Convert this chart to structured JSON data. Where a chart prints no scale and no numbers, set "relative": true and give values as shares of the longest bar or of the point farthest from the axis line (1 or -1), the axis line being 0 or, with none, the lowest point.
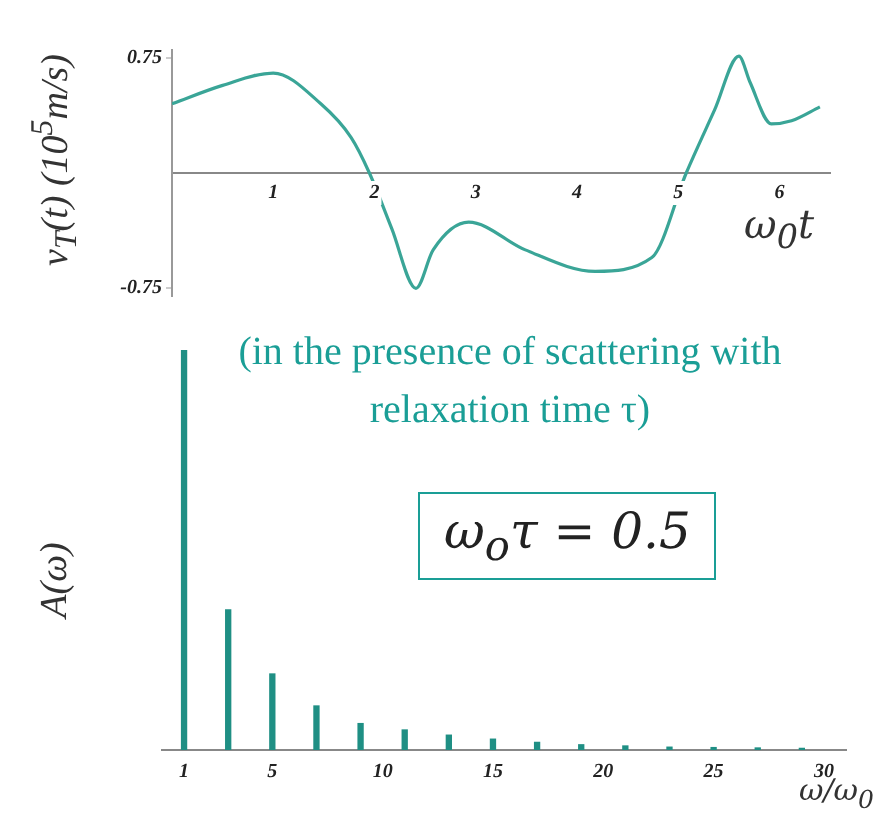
{
  "chart_data": [
    {
      "type": "line",
      "xlabel": "ω$_{0}$t",
      "ylabel": "v$_{T}$(t)  (10$^{5}$m/s)",
      "color": "#3aa597",
      "x": [
        0,
        0.5,
        1,
        1.47,
        1.77,
        1.95,
        2.17,
        2.41,
        2.58,
        2.93,
        3.49,
        4.18,
        4.74,
        5.08,
        5.36,
        5.6,
        5.71,
        5.92,
        6.12,
        6.4
      ],
      "values": [
        0.45,
        0.57,
        0.65,
        0.45,
        0.23,
        0,
        -0.36,
        -0.75,
        -0.5,
        -0.32,
        -0.5,
        -0.64,
        -0.55,
        0,
        0.41,
        0.76,
        0.59,
        0.32,
        0.34,
        0.43
      ],
      "xlim": [
        0,
        6.5
      ],
      "xticks": [
        1,
        2,
        3,
        4,
        5,
        6
      ],
      "ylim": [
        -0.8,
        0.8
      ],
      "yticks": [
        0.75,
        -0.75
      ],
      "grid": false,
      "legend": false,
      "marker": "none",
      "line_style": "solid"
    },
    {
      "type": "bar",
      "relative": true,
      "xlabel": "ω/ω$_{0}$",
      "ylabel": "A(ω)",
      "color": "#1f8f84",
      "x": [
        1,
        3,
        5,
        7,
        9,
        11,
        13,
        15,
        17,
        19,
        21,
        23,
        25,
        27,
        29
      ],
      "values": [
        1,
        0.35,
        0.19,
        0.11,
        0.066,
        0.05,
        0.037,
        0.027,
        0.019,
        0.013,
        0.01,
        0.007,
        0.006,
        0.005,
        0.004
      ],
      "xlim": [
        0,
        31
      ],
      "xticks": [
        1,
        5,
        10,
        15,
        20,
        25,
        30
      ],
      "grid": false,
      "legend": false,
      "annotations": [
        "(in the presence of scattering with relaxation time τ)",
        "ω$_{o}$τ = 0.5"
      ]
    }
  ]
}
